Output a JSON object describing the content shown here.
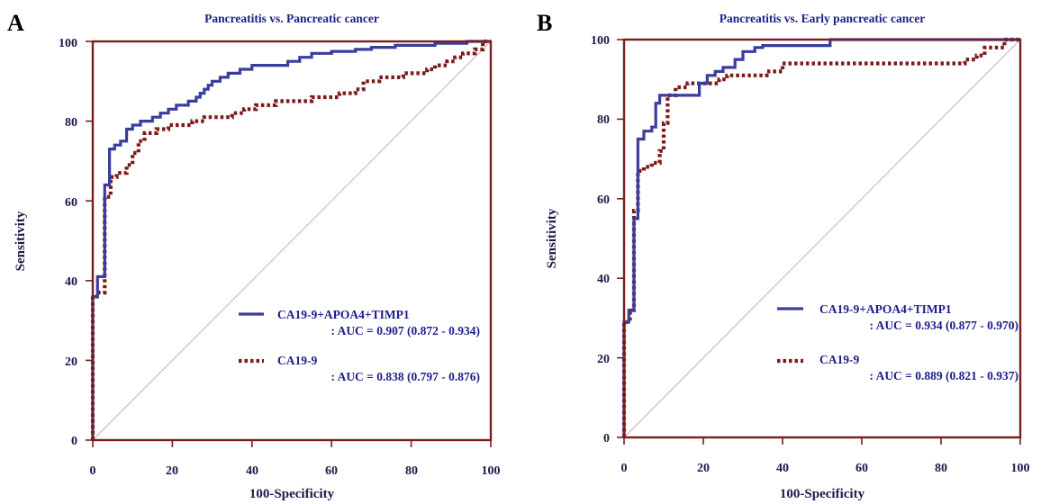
{
  "panels": [
    {
      "letter": "A",
      "title": "Pancreatitis vs. Pancreatic cancer",
      "legend": [
        {
          "name": "CA19-9+APOA4+TIMP1",
          "auc": ": AUC = 0.907 (0.872 - 0.934)"
        },
        {
          "name": "CA19-9",
          "auc": ": AUC = 0.838 (0.797 - 0.876)"
        }
      ]
    },
    {
      "letter": "B",
      "title": "Pancreatitis vs. Early pancreatic cancer",
      "legend": [
        {
          "name": "CA19-9+APOA4+TIMP1",
          "auc": ": AUC = 0.934 (0.877 - 0.970)"
        },
        {
          "name": "CA19-9",
          "auc": ": AUC = 0.889 (0.821 - 0.937)"
        }
      ]
    }
  ],
  "colors": {
    "combined": "#3a3d9c",
    "ca199": "#7d1a1a",
    "frame": "#7a1f1f"
  },
  "chart_data": [
    {
      "type": "line",
      "title": "Pancreatitis vs. Pancreatic cancer",
      "xlabel": "100-Specificity",
      "ylabel": "Sensitivity",
      "xlim": [
        0,
        100
      ],
      "ylim": [
        0,
        100
      ],
      "xticks": [
        "0",
        "20",
        "40",
        "60",
        "80",
        "100"
      ],
      "yticks": [
        "0",
        "20",
        "40",
        "60",
        "80",
        "100"
      ],
      "diagonal": true,
      "series": [
        {
          "name": "CA19-9+APOA4+TIMP1",
          "style": "solid",
          "points": [
            [
              0,
              0
            ],
            [
              0,
              36
            ],
            [
              1.2,
              36
            ],
            [
              1.2,
              41
            ],
            [
              3,
              41
            ],
            [
              3,
              64
            ],
            [
              4.2,
              64
            ],
            [
              4.2,
              73
            ],
            [
              5.5,
              73
            ],
            [
              5.5,
              74
            ],
            [
              7,
              74
            ],
            [
              7,
              75
            ],
            [
              8.5,
              75
            ],
            [
              8.5,
              78
            ],
            [
              10,
              78
            ],
            [
              10,
              79
            ],
            [
              12,
              79
            ],
            [
              12,
              80
            ],
            [
              15,
              80
            ],
            [
              15,
              81
            ],
            [
              17,
              81
            ],
            [
              17,
              82
            ],
            [
              19,
              82
            ],
            [
              19,
              83
            ],
            [
              21,
              83
            ],
            [
              21,
              84
            ],
            [
              24,
              84
            ],
            [
              24,
              85
            ],
            [
              26,
              85
            ],
            [
              26,
              86
            ],
            [
              27,
              86
            ],
            [
              27,
              87
            ],
            [
              28,
              87
            ],
            [
              28,
              88
            ],
            [
              29,
              88
            ],
            [
              29,
              89
            ],
            [
              30,
              89
            ],
            [
              30,
              90
            ],
            [
              32,
              90
            ],
            [
              32,
              91
            ],
            [
              34,
              91
            ],
            [
              34,
              92
            ],
            [
              37,
              92
            ],
            [
              37,
              93
            ],
            [
              40,
              93
            ],
            [
              40,
              94
            ],
            [
              49,
              94
            ],
            [
              49,
              95
            ],
            [
              52,
              95
            ],
            [
              52,
              96
            ],
            [
              55,
              96
            ],
            [
              55,
              97
            ],
            [
              60,
              97
            ],
            [
              60,
              97.5
            ],
            [
              66,
              97.5
            ],
            [
              66,
              98
            ],
            [
              70,
              98
            ],
            [
              70,
              98.5
            ],
            [
              76,
              98.5
            ],
            [
              76,
              99
            ],
            [
              86,
              99
            ],
            [
              86,
              99.5
            ],
            [
              94,
              99.5
            ],
            [
              94,
              100
            ],
            [
              100,
              100
            ]
          ]
        },
        {
          "name": "CA19-9",
          "style": "dotted",
          "points": [
            [
              0,
              0
            ],
            [
              0,
              36
            ],
            [
              1.5,
              36
            ],
            [
              1.5,
              37
            ],
            [
              3,
              37
            ],
            [
              3,
              61
            ],
            [
              4.5,
              61
            ],
            [
              4.5,
              66
            ],
            [
              6,
              66
            ],
            [
              6,
              67
            ],
            [
              8.5,
              67
            ],
            [
              8.5,
              69
            ],
            [
              10,
              69
            ],
            [
              10,
              72
            ],
            [
              11.5,
              72
            ],
            [
              11.5,
              75
            ],
            [
              13,
              75
            ],
            [
              13,
              77
            ],
            [
              16,
              77
            ],
            [
              16,
              78
            ],
            [
              19,
              78
            ],
            [
              19,
              79
            ],
            [
              25,
              79
            ],
            [
              25,
              80
            ],
            [
              28,
              80
            ],
            [
              28,
              81
            ],
            [
              35,
              81
            ],
            [
              35,
              82
            ],
            [
              38,
              82
            ],
            [
              38,
              83
            ],
            [
              41,
              83
            ],
            [
              41,
              84
            ],
            [
              46,
              84
            ],
            [
              46,
              85
            ],
            [
              55,
              85
            ],
            [
              55,
              86
            ],
            [
              62,
              86
            ],
            [
              62,
              87
            ],
            [
              66,
              87
            ],
            [
              66,
              88
            ],
            [
              68,
              88
            ],
            [
              68,
              90
            ],
            [
              72,
              90
            ],
            [
              72,
              91
            ],
            [
              78,
              91
            ],
            [
              78,
              92
            ],
            [
              84,
              92
            ],
            [
              84,
              93
            ],
            [
              86,
              93
            ],
            [
              86,
              94
            ],
            [
              89,
              94
            ],
            [
              89,
              95
            ],
            [
              91,
              95
            ],
            [
              91,
              96
            ],
            [
              93,
              96
            ],
            [
              93,
              97
            ],
            [
              96,
              97
            ],
            [
              96,
              98
            ],
            [
              98,
              98
            ],
            [
              98,
              100
            ],
            [
              100,
              100
            ]
          ]
        }
      ]
    },
    {
      "type": "line",
      "title": "Pancreatitis vs. Early pancreatic cancer",
      "xlabel": "100-Specificity",
      "ylabel": "Sensitivity",
      "xlim": [
        0,
        100
      ],
      "ylim": [
        0,
        100
      ],
      "xticks": [
        "0",
        "20",
        "40",
        "60",
        "80",
        "100"
      ],
      "yticks": [
        "0",
        "20",
        "40",
        "60",
        "80",
        "100"
      ],
      "diagonal": true,
      "series": [
        {
          "name": "CA19-9+APOA4+TIMP1",
          "style": "solid",
          "points": [
            [
              0,
              0
            ],
            [
              0,
              29
            ],
            [
              1.2,
              29
            ],
            [
              1.2,
              32
            ],
            [
              2.5,
              32
            ],
            [
              2.5,
              55
            ],
            [
              3.5,
              55
            ],
            [
              3.5,
              75
            ],
            [
              5,
              75
            ],
            [
              5,
              77
            ],
            [
              7,
              77
            ],
            [
              7,
              78
            ],
            [
              8,
              78
            ],
            [
              8,
              84
            ],
            [
              9,
              84
            ],
            [
              9,
              86
            ],
            [
              19,
              86
            ],
            [
              19,
              89
            ],
            [
              21,
              89
            ],
            [
              21,
              91
            ],
            [
              23,
              91
            ],
            [
              23,
              92
            ],
            [
              25,
              92
            ],
            [
              25,
              93
            ],
            [
              28,
              93
            ],
            [
              28,
              95
            ],
            [
              30,
              95
            ],
            [
              30,
              97
            ],
            [
              33,
              97
            ],
            [
              33,
              98
            ],
            [
              35,
              98
            ],
            [
              35,
              98.5
            ],
            [
              52,
              98.5
            ],
            [
              52,
              100
            ],
            [
              100,
              100
            ]
          ]
        },
        {
          "name": "CA19-9",
          "style": "dotted",
          "points": [
            [
              0,
              0
            ],
            [
              0,
              29
            ],
            [
              1.5,
              29
            ],
            [
              1.5,
              32
            ],
            [
              2.5,
              32
            ],
            [
              2.5,
              57
            ],
            [
              3.5,
              57
            ],
            [
              3.5,
              67
            ],
            [
              5,
              67
            ],
            [
              5,
              68
            ],
            [
              7,
              68
            ],
            [
              7,
              69
            ],
            [
              9,
              69
            ],
            [
              9,
              72
            ],
            [
              10,
              72
            ],
            [
              10,
              79
            ],
            [
              11,
              79
            ],
            [
              11,
              86
            ],
            [
              13,
              86
            ],
            [
              13,
              88
            ],
            [
              16,
              88
            ],
            [
              16,
              89
            ],
            [
              24,
              89
            ],
            [
              24,
              90
            ],
            [
              26,
              90
            ],
            [
              26,
              91
            ],
            [
              36,
              91
            ],
            [
              36,
              92
            ],
            [
              40,
              92
            ],
            [
              40,
              94
            ],
            [
              86,
              94
            ],
            [
              86,
              95
            ],
            [
              89,
              95
            ],
            [
              89,
              96
            ],
            [
              91,
              96
            ],
            [
              91,
              98
            ],
            [
              96,
              98
            ],
            [
              96,
              100
            ],
            [
              100,
              100
            ]
          ]
        }
      ]
    }
  ]
}
